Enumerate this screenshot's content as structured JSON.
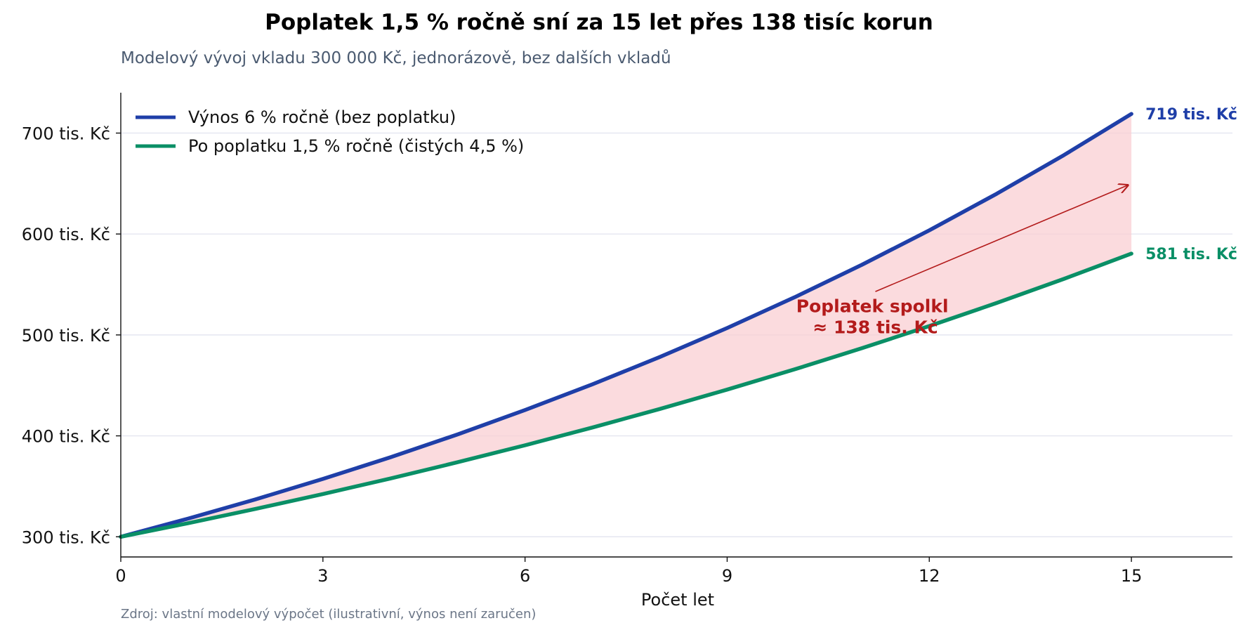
{
  "title": "Poplatek 1,5 % ročně sní za 15 let přes 138 tisíc korun",
  "subtitle": "Modelový vývoj vkladu 300 000 Kč, jednorázově, bez dalších vkladů",
  "source": "Zdroj: vlastní modelový výpočet (ilustrativní, výnos není zaručen)",
  "colors": {
    "gross": "#1f3fa8",
    "net": "#0a8f66",
    "fill": "#f9cdd1",
    "annotation": "#b31b1b",
    "grid": "#e4e6f0"
  },
  "chart_data": {
    "type": "line",
    "title": "Poplatek 1,5 % ročně sní za 15 let přes 138 tisíc korun",
    "subtitle": "Modelový vývoj vkladu 300 000 Kč, jednorázově, bez dalších vkladů",
    "xlabel": "Počet let",
    "ylabel": "",
    "xlim": [
      0,
      16.5
    ],
    "ylim": [
      280000,
      740000
    ],
    "xticks": [
      0,
      3,
      6,
      9,
      12,
      15
    ],
    "xtick_labels": [
      "0",
      "3",
      "6",
      "9",
      "12",
      "15"
    ],
    "yticks": [
      300000,
      400000,
      500000,
      600000,
      700000
    ],
    "ytick_labels": [
      "300 tis. Kč",
      "400 tis. Kč",
      "500 tis. Kč",
      "600 tis. Kč",
      "700 tis. Kč"
    ],
    "grid": "horizontal",
    "legend_position": "top-left",
    "x": [
      0,
      1,
      2,
      3,
      4,
      5,
      6,
      7,
      8,
      9,
      10,
      11,
      12,
      13,
      14,
      15
    ],
    "series": [
      {
        "name": "Výnos 6 % ročně (bez poplatku)",
        "color": "#1f3fa8",
        "values": [
          300000,
          318000,
          337080,
          357305,
          378743,
          401468,
          425556,
          451089,
          478154,
          506844,
          537254,
          569489,
          603659,
          639878,
          678271,
          718967
        ],
        "end_label": "719 tis. Kč"
      },
      {
        "name": "Po poplatku 1,5 % ročně (čistých 4,5 %)",
        "color": "#0a8f66",
        "values": [
          300000,
          313500,
          327608,
          342350,
          357756,
          373855,
          390679,
          408260,
          426632,
          445830,
          465892,
          486857,
          508766,
          531661,
          555585,
          580586
        ],
        "end_label": "581 tis. Kč"
      }
    ],
    "annotation": {
      "lines": [
        "Poplatek spolkl",
        "≈ 138 tis. Kč"
      ],
      "text_at": {
        "x": 11.2,
        "y": 512000
      },
      "arrow_from": {
        "x": 11.2,
        "y": 543000
      },
      "arrow_to": {
        "x": 15,
        "y": 649777
      }
    }
  }
}
